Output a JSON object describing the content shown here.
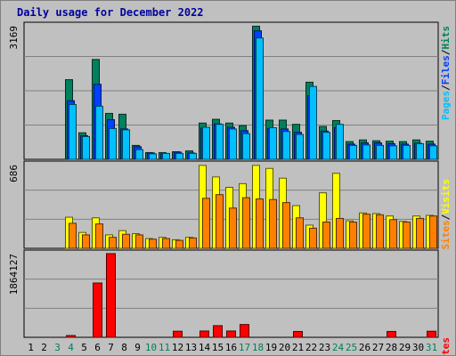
{
  "title": "Daily usage for December 2022",
  "colors": {
    "hits": "#00805c",
    "files": "#0040ff",
    "pages": "#00c0ff",
    "visits": "#ffff00",
    "sites": "#ff8000",
    "kbytes": "#ff0000",
    "weekend_day": "#00805c",
    "weekday": "#000000",
    "frame_bg": "#c0c0c0"
  },
  "chart_data": [
    {
      "type": "bar",
      "title": "Daily usage for December 2022",
      "panel": "top",
      "y_max_label": "3169",
      "ylim": [
        0,
        3169
      ],
      "legend": [
        "Pages",
        "Files",
        "Hits"
      ],
      "categories": [
        "1",
        "2",
        "3",
        "4",
        "5",
        "6",
        "7",
        "8",
        "9",
        "10",
        "11",
        "12",
        "13",
        "14",
        "15",
        "16",
        "17",
        "18",
        "19",
        "20",
        "21",
        "22",
        "23",
        "24",
        "25",
        "26",
        "27",
        "28",
        "29",
        "30",
        "31"
      ],
      "series": [
        {
          "name": "Hits",
          "values": [
            0,
            0,
            0,
            1890,
            630,
            2370,
            1090,
            1070,
            330,
            160,
            160,
            180,
            200,
            860,
            950,
            860,
            800,
            3160,
            930,
            930,
            830,
            1830,
            780,
            920,
            420,
            460,
            440,
            430,
            420,
            460,
            430
          ]
        },
        {
          "name": "Files",
          "values": [
            0,
            0,
            0,
            1390,
            560,
            1780,
            940,
            720,
            300,
            150,
            130,
            170,
            150,
            740,
            840,
            760,
            680,
            3050,
            730,
            720,
            640,
            1510,
            670,
            750,
            360,
            390,
            390,
            370,
            360,
            380,
            360
          ]
        },
        {
          "name": "Pages",
          "values": [
            0,
            0,
            0,
            1300,
            540,
            1260,
            730,
            700,
            230,
            130,
            140,
            140,
            140,
            760,
            830,
            720,
            610,
            2880,
            750,
            660,
            590,
            1730,
            640,
            830,
            330,
            340,
            330,
            320,
            330,
            370,
            320
          ]
        }
      ]
    },
    {
      "type": "bar",
      "panel": "middle",
      "y_max_label": "686",
      "ylim": [
        0,
        686
      ],
      "legend": [
        "Sites",
        "Visits"
      ],
      "categories": [
        "1",
        "2",
        "3",
        "4",
        "5",
        "6",
        "7",
        "8",
        "9",
        "10",
        "11",
        "12",
        "13",
        "14",
        "15",
        "16",
        "17",
        "18",
        "19",
        "20",
        "21",
        "22",
        "23",
        "24",
        "25",
        "26",
        "27",
        "28",
        "29",
        "30",
        "31"
      ],
      "series": [
        {
          "name": "Visits",
          "values": [
            0,
            0,
            0,
            255,
            130,
            250,
            110,
            145,
            120,
            80,
            90,
            70,
            90,
            680,
            585,
            500,
            530,
            680,
            655,
            575,
            350,
            190,
            455,
            615,
            225,
            290,
            285,
            265,
            220,
            265,
            270
          ]
        },
        {
          "name": "Sites",
          "values": [
            0,
            0,
            0,
            205,
            110,
            200,
            90,
            115,
            110,
            75,
            80,
            65,
            85,
            410,
            440,
            330,
            415,
            405,
            400,
            375,
            250,
            165,
            215,
            245,
            215,
            280,
            275,
            235,
            215,
            245,
            265
          ]
        }
      ]
    },
    {
      "type": "bar",
      "panel": "bottom",
      "y_max_label": "1864127",
      "ylim": [
        0,
        3728254
      ],
      "legend": [
        "KBytes"
      ],
      "categories": [
        "1",
        "2",
        "3",
        "4",
        "5",
        "6",
        "7",
        "8",
        "9",
        "10",
        "11",
        "12",
        "13",
        "14",
        "15",
        "16",
        "17",
        "18",
        "19",
        "20",
        "21",
        "22",
        "23",
        "24",
        "25",
        "26",
        "27",
        "28",
        "29",
        "30",
        "31"
      ],
      "series": [
        {
          "name": "KBytes",
          "values": [
            0,
            0,
            0,
            70000,
            0,
            2420000,
            3730000,
            0,
            0,
            0,
            0,
            270000,
            0,
            280000,
            520000,
            280000,
            570000,
            0,
            0,
            0,
            260000,
            0,
            0,
            0,
            0,
            0,
            0,
            260000,
            0,
            0,
            270000
          ]
        }
      ]
    }
  ],
  "x_labels": [
    {
      "text": "1",
      "weekend": false
    },
    {
      "text": "2",
      "weekend": false
    },
    {
      "text": "3",
      "weekend": true
    },
    {
      "text": "4",
      "weekend": true
    },
    {
      "text": "5",
      "weekend": false
    },
    {
      "text": "6",
      "weekend": false
    },
    {
      "text": "7",
      "weekend": false
    },
    {
      "text": "8",
      "weekend": false
    },
    {
      "text": "9",
      "weekend": false
    },
    {
      "text": "10",
      "weekend": true
    },
    {
      "text": "11",
      "weekend": true
    },
    {
      "text": "12",
      "weekend": false
    },
    {
      "text": "13",
      "weekend": false
    },
    {
      "text": "14",
      "weekend": false
    },
    {
      "text": "15",
      "weekend": false
    },
    {
      "text": "16",
      "weekend": false
    },
    {
      "text": "17",
      "weekend": true
    },
    {
      "text": "18",
      "weekend": true
    },
    {
      "text": "19",
      "weekend": false
    },
    {
      "text": "20",
      "weekend": false
    },
    {
      "text": "21",
      "weekend": false
    },
    {
      "text": "22",
      "weekend": false
    },
    {
      "text": "23",
      "weekend": false
    },
    {
      "text": "24",
      "weekend": true
    },
    {
      "text": "25",
      "weekend": true
    },
    {
      "text": "26",
      "weekend": false
    },
    {
      "text": "27",
      "weekend": false
    },
    {
      "text": "28",
      "weekend": false
    },
    {
      "text": "29",
      "weekend": false
    },
    {
      "text": "30",
      "weekend": false
    },
    {
      "text": "31",
      "weekend": true
    }
  ]
}
